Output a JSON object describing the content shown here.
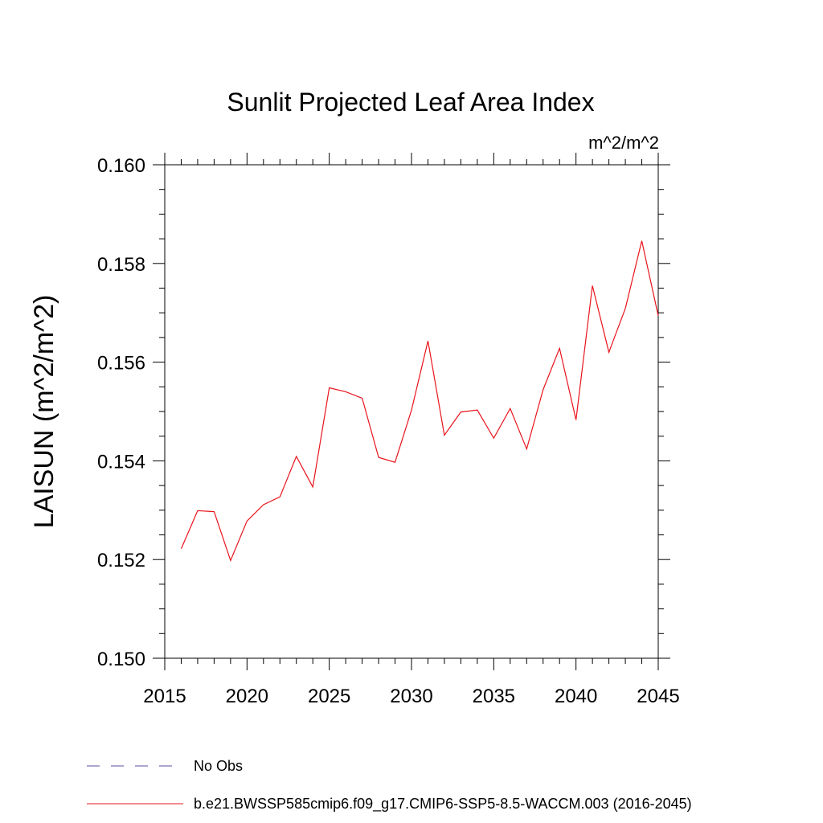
{
  "chart_data": {
    "type": "line",
    "title": "Sunlit Projected Leaf Area Index",
    "units_label": "m^2/m^2",
    "xlabel": "",
    "ylabel": "LAISUN  (m^2/m^2)",
    "xlim": [
      2015,
      2045
    ],
    "ylim": [
      0.15,
      0.16
    ],
    "x_ticks": [
      2015,
      2020,
      2025,
      2030,
      2035,
      2040,
      2045
    ],
    "x_tick_labels": [
      "2015",
      "2020",
      "2025",
      "2030",
      "2035",
      "2040",
      "2045"
    ],
    "y_ticks": [
      0.15,
      0.152,
      0.154,
      0.156,
      0.158,
      0.16
    ],
    "y_tick_labels": [
      "0.150",
      "0.152",
      "0.154",
      "0.156",
      "0.158",
      "0.160"
    ],
    "grid": false,
    "legend_position": "bottom",
    "series": [
      {
        "name": "b.e21.BWSSP585cmip6.f09_g17.CMIP6-SSP5-8.5-WACCM.003 (2016-2045)",
        "color": "#e8141c",
        "style": "solid",
        "x": [
          2016,
          2017,
          2018,
          2019,
          2020,
          2021,
          2022,
          2023,
          2024,
          2025,
          2026,
          2027,
          2028,
          2029,
          2030,
          2031,
          2032,
          2033,
          2034,
          2035,
          2036,
          2037,
          2038,
          2039,
          2040,
          2041,
          2042,
          2043,
          2044,
          2045
        ],
        "y": [
          0.15222,
          0.15299,
          0.15297,
          0.15198,
          0.15278,
          0.15311,
          0.15327,
          0.15409,
          0.15347,
          0.15548,
          0.1554,
          0.15527,
          0.15407,
          0.15397,
          0.15503,
          0.15643,
          0.15452,
          0.15499,
          0.15503,
          0.15446,
          0.15506,
          0.15424,
          0.15544,
          0.15628,
          0.15483,
          0.15755,
          0.1562,
          0.15709,
          0.15846,
          0.15694
        ]
      },
      {
        "name": "No Obs",
        "color": "#5a4fa0",
        "style": "dashed",
        "x": [],
        "y": []
      }
    ]
  }
}
